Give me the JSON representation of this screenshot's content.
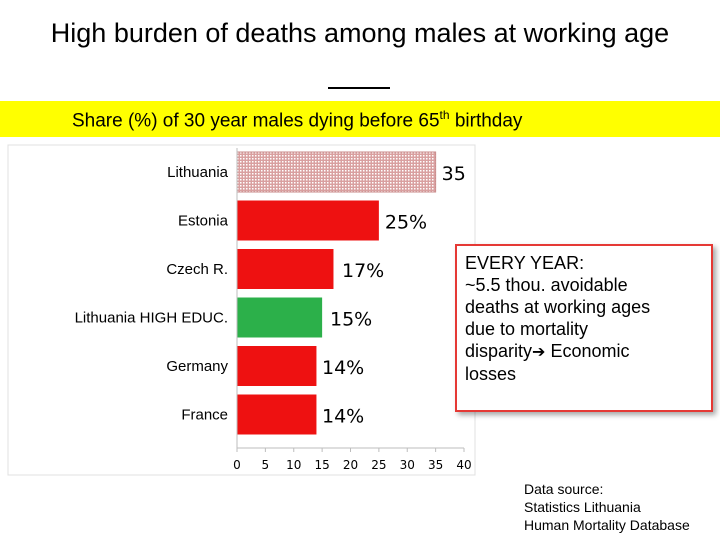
{
  "slide": {
    "title": "High burden of deaths among males at working age",
    "subtitle_pre": "Share (%) of 30 year males dying before 65",
    "subtitle_sup": "th",
    "subtitle_post": " birthday"
  },
  "note": {
    "line1": "EVERY YEAR:",
    "line2": " ~5.5 thou. avoidable",
    "line3": "deaths at working ages",
    "line4": "due to mortality",
    "line5_pre": "disparity",
    "line5_post": " Economic",
    "line6": "losses",
    "arrow_icon": "right-arrow-icon"
  },
  "source": {
    "line1": "Data source:",
    "line2": "Statistics Lithuania",
    "line3": "Human Mortality Database"
  },
  "chart_data": {
    "type": "bar",
    "orientation": "horizontal",
    "categories": [
      "Lithuania",
      "Estonia",
      "Czech R.",
      "Lithuania HIGH EDUC.",
      "Germany",
      "France"
    ],
    "values": [
      35,
      25,
      17,
      15,
      14,
      14
    ],
    "data_labels": [
      "35",
      "25%",
      "17%",
      "15%",
      "14%",
      "14%"
    ],
    "colors": [
      "#e0b0b0",
      "#ee1111",
      "#ee1111",
      "#2cb04a",
      "#ee1111",
      "#ee1111"
    ],
    "patterned": [
      true,
      false,
      false,
      false,
      false,
      false
    ],
    "xlim": [
      0,
      40
    ],
    "xticks": [
      0,
      5,
      10,
      15,
      20,
      25,
      30,
      35,
      40
    ],
    "xlabel": "",
    "ylabel": "",
    "grid": false
  }
}
